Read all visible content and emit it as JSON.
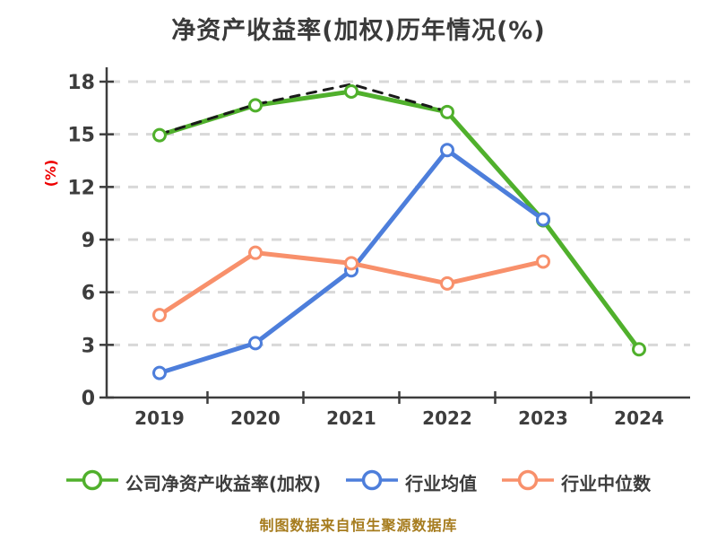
{
  "title": "净资产收益率(加权)历年情况(%)",
  "footer": "制图数据来自恒生聚源数据库",
  "y_axis": {
    "label": "(%)",
    "ticks": [
      0,
      3,
      6,
      9,
      12,
      15,
      18
    ],
    "min": 0,
    "max": 18
  },
  "x_axis": {
    "categories": [
      "2019",
      "2020",
      "2021",
      "2022",
      "2023",
      "2024"
    ]
  },
  "chart_data": {
    "type": "line",
    "title": "净资产收益率(加权)历年情况(%)",
    "xlabel": "",
    "ylabel": "(%)",
    "ylim": [
      0,
      18
    ],
    "grid": "horizontal-dashed",
    "legend_position": "bottom",
    "categories": [
      "2019",
      "2020",
      "2021",
      "2022",
      "2023",
      "2024"
    ],
    "series": [
      {
        "name": "公司净资产收益率(加权)",
        "color": "#50b02c",
        "style": "solid",
        "marker": "circle-white-fill",
        "values": [
          14.95,
          16.65,
          17.44,
          16.27,
          10.1,
          2.75
        ]
      },
      {
        "name": "行业均值",
        "color": "#4d7edb",
        "style": "solid",
        "marker": "circle-white-fill",
        "values": [
          1.4,
          3.1,
          7.25,
          14.1,
          10.15
        ]
      },
      {
        "name": "行业中位数",
        "color": "#f8906b",
        "style": "solid",
        "marker": "circle-white-fill",
        "values": [
          4.7,
          8.25,
          7.65,
          6.5,
          7.75
        ]
      },
      {
        "name": "unlabeled-dark-dashed-overlay",
        "color": "#1a1a1a",
        "style": "dashed",
        "marker": "none",
        "in_legend": false,
        "values": [
          15.0,
          16.7,
          17.85,
          16.3
        ]
      }
    ]
  },
  "legend": {
    "items": [
      {
        "label": "公司净资产收益率(加权)",
        "color": "#50b02c"
      },
      {
        "label": "行业均值",
        "color": "#4d7edb"
      },
      {
        "label": "行业中位数",
        "color": "#f8906b"
      }
    ]
  },
  "colors": {
    "axis": "#3d3d3d",
    "gridline": "#d8d8d8",
    "tick_label": "#3d3d3d",
    "title": "#3a3a3a",
    "ylabel_red": "#ee0000",
    "footer_gold": "#a67c1e",
    "background": "#ffffff"
  }
}
